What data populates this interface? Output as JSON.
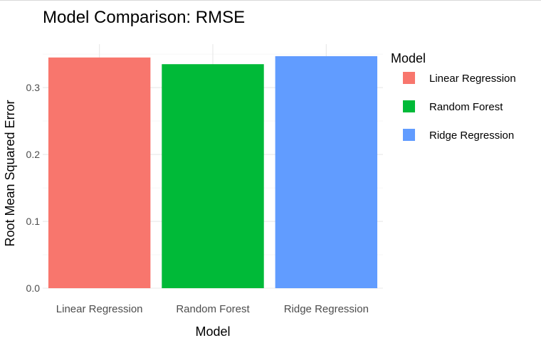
{
  "chart_data": {
    "type": "bar",
    "title": "Model Comparison: RMSE",
    "xlabel": "Model",
    "ylabel": "Root Mean Squared Error",
    "categories": [
      "Linear Regression",
      "Random Forest",
      "Ridge Regression"
    ],
    "values": [
      0.345,
      0.335,
      0.347
    ],
    "colors": [
      "#F8766D",
      "#00BA38",
      "#619CFF"
    ],
    "ylim": [
      0,
      0.365
    ],
    "yticks": [
      0.0,
      0.1,
      0.2,
      0.3
    ],
    "ytick_labels": [
      "0.0",
      "0.1",
      "0.2",
      "0.3"
    ],
    "grid": true,
    "legend": {
      "title": "Model",
      "placement": "right",
      "entries": [
        "Linear Regression",
        "Random Forest",
        "Ridge Regression"
      ]
    }
  }
}
